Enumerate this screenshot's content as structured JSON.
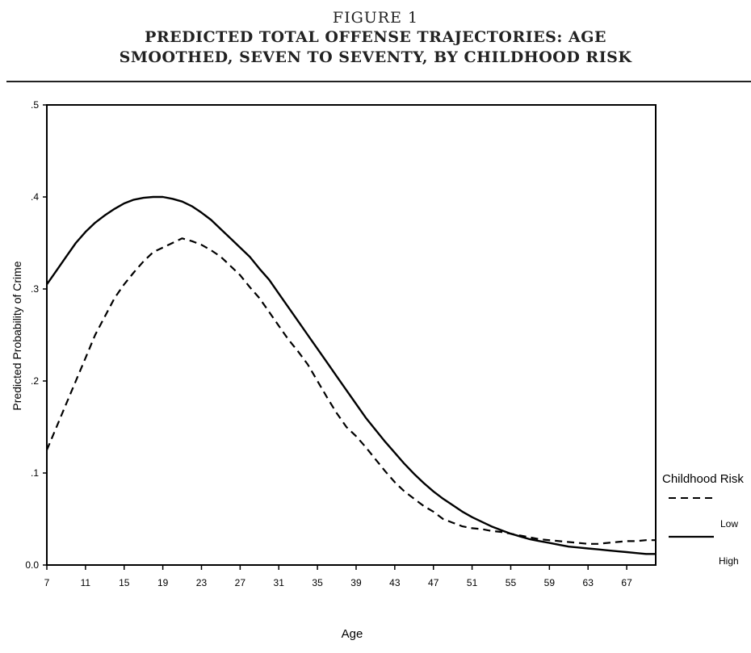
{
  "figure": {
    "label": "FIGURE 1",
    "title_line1": "PREDICTED TOTAL OFFENSE TRAJECTORIES: AGE",
    "title_line2": "SMOOTHED, SEVEN TO SEVENTY, BY CHILDHOOD RISK"
  },
  "chart_data": {
    "type": "line",
    "title": "PREDICTED TOTAL OFFENSE TRAJECTORIES: AGE SMOOTHED, SEVEN TO SEVENTY, BY CHILDHOOD RISK",
    "xlabel": "Age",
    "ylabel": "Predicted Probability of Crime",
    "xlim": [
      7,
      70
    ],
    "ylim": [
      0,
      0.5
    ],
    "xticks": [
      7,
      11,
      15,
      19,
      23,
      27,
      31,
      35,
      39,
      43,
      47,
      51,
      55,
      59,
      63,
      67
    ],
    "xtick_labels": [
      "7",
      "11",
      "15",
      "19",
      "23",
      "27",
      "31",
      "35",
      "39",
      "43",
      "47",
      "51",
      "55",
      "59",
      "63",
      "67"
    ],
    "yticks": [
      0,
      0.1,
      0.2,
      0.3,
      0.4,
      0.5
    ],
    "ytick_labels": [
      "0.0",
      ".1",
      ".2",
      ".3",
      ".4",
      ".5"
    ],
    "grid": false,
    "legend": {
      "title": "Childhood Risk",
      "placement": "right"
    },
    "series": [
      {
        "name": "Low",
        "style": "dashed",
        "color": "#000000",
        "x": [
          7,
          8,
          9,
          10,
          11,
          12,
          13,
          14,
          15,
          16,
          17,
          18,
          19,
          20,
          21,
          22,
          23,
          24,
          25,
          26,
          27,
          28,
          29,
          30,
          31,
          32,
          33,
          34,
          35,
          36,
          37,
          38,
          39,
          40,
          41,
          42,
          43,
          44,
          45,
          46,
          47,
          48,
          49,
          50,
          51,
          52,
          53,
          54,
          55,
          56,
          57,
          58,
          59,
          60,
          61,
          62,
          63,
          64,
          65,
          66,
          67,
          68,
          69,
          70
        ],
        "y": [
          0.125,
          0.15,
          0.175,
          0.2,
          0.225,
          0.25,
          0.27,
          0.29,
          0.305,
          0.318,
          0.33,
          0.34,
          0.345,
          0.35,
          0.355,
          0.352,
          0.348,
          0.342,
          0.335,
          0.325,
          0.315,
          0.302,
          0.29,
          0.275,
          0.26,
          0.245,
          0.232,
          0.218,
          0.2,
          0.182,
          0.165,
          0.15,
          0.14,
          0.128,
          0.115,
          0.102,
          0.09,
          0.08,
          0.072,
          0.064,
          0.058,
          0.05,
          0.046,
          0.042,
          0.04,
          0.039,
          0.037,
          0.036,
          0.034,
          0.032,
          0.03,
          0.028,
          0.027,
          0.026,
          0.025,
          0.024,
          0.023,
          0.023,
          0.024,
          0.025,
          0.026,
          0.026,
          0.027,
          0.027
        ]
      },
      {
        "name": "High",
        "style": "solid",
        "color": "#000000",
        "x": [
          7,
          8,
          9,
          10,
          11,
          12,
          13,
          14,
          15,
          16,
          17,
          18,
          19,
          20,
          21,
          22,
          23,
          24,
          25,
          26,
          27,
          28,
          29,
          30,
          31,
          32,
          33,
          34,
          35,
          36,
          37,
          38,
          39,
          40,
          41,
          42,
          43,
          44,
          45,
          46,
          47,
          48,
          49,
          50,
          51,
          52,
          53,
          54,
          55,
          56,
          57,
          58,
          59,
          60,
          61,
          62,
          63,
          64,
          65,
          66,
          67,
          68,
          69,
          70
        ],
        "y": [
          0.305,
          0.32,
          0.335,
          0.35,
          0.362,
          0.372,
          0.38,
          0.387,
          0.393,
          0.397,
          0.399,
          0.4,
          0.4,
          0.398,
          0.395,
          0.39,
          0.383,
          0.375,
          0.365,
          0.355,
          0.345,
          0.335,
          0.322,
          0.31,
          0.295,
          0.28,
          0.265,
          0.25,
          0.235,
          0.22,
          0.205,
          0.19,
          0.175,
          0.16,
          0.147,
          0.134,
          0.122,
          0.11,
          0.099,
          0.089,
          0.08,
          0.072,
          0.065,
          0.058,
          0.052,
          0.047,
          0.042,
          0.038,
          0.034,
          0.031,
          0.028,
          0.026,
          0.024,
          0.022,
          0.02,
          0.019,
          0.018,
          0.017,
          0.016,
          0.015,
          0.014,
          0.013,
          0.012,
          0.012
        ]
      }
    ]
  }
}
